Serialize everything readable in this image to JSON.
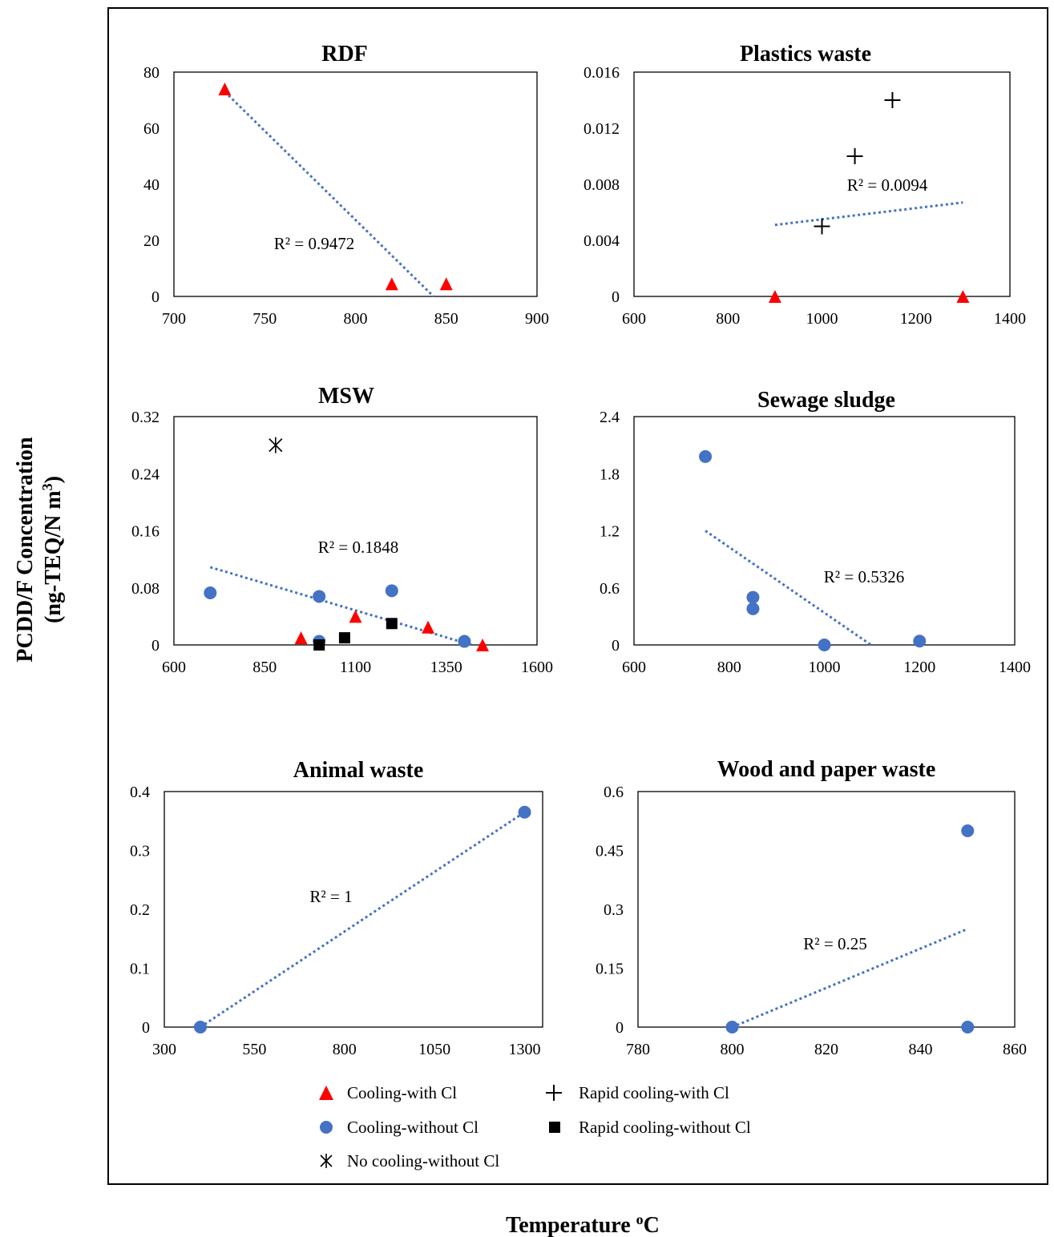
{
  "y_axis_title_line1": "PCDD/F Concentration",
  "y_axis_title_line2": "(ng-TEQ/N m3)",
  "x_axis_title": "Temperature oC",
  "colors": {
    "cooling_with_cl": "#ff0000",
    "cooling_without_cl": "#4472c4",
    "rapid": "#000000",
    "trendline": "#4472c4"
  },
  "legend": [
    {
      "label": "Cooling-with Cl",
      "marker": "triangle-red"
    },
    {
      "label": "Rapid cooling-with Cl",
      "marker": "plus-black"
    },
    {
      "label": "Cooling-without Cl",
      "marker": "circle-blue"
    },
    {
      "label": "Rapid cooling-without Cl",
      "marker": "square-black"
    },
    {
      "label": "No cooling-without Cl",
      "marker": "asterisk-black"
    }
  ],
  "chart_data": [
    {
      "type": "scatter",
      "title": "RDF",
      "xlim": [
        700,
        900
      ],
      "ylim": [
        0,
        80
      ],
      "xticks": [
        700,
        750,
        800,
        850,
        900
      ],
      "yticks": [
        0,
        20,
        40,
        60,
        80
      ],
      "series": [
        {
          "name": "Cooling-with Cl",
          "marker": "triangle",
          "points": [
            [
              728,
              74
            ],
            [
              820,
              4.5
            ],
            [
              850,
              4.5
            ]
          ]
        }
      ],
      "trendline": {
        "x": [
          728,
          843
        ],
        "y": [
          73,
          0
        ]
      },
      "r2_label": "R² = 0.9472"
    },
    {
      "type": "scatter",
      "title": "Plastics waste",
      "xlim": [
        600,
        1400
      ],
      "ylim": [
        0,
        0.016
      ],
      "xticks": [
        600,
        800,
        1000,
        1200,
        1400
      ],
      "yticks": [
        "0",
        "0.004",
        "0.008",
        "0.012",
        "0.016"
      ],
      "series": [
        {
          "name": "Cooling-with Cl",
          "marker": "triangle",
          "points": [
            [
              900,
              0
            ],
            [
              1300,
              0
            ]
          ]
        },
        {
          "name": "Rapid cooling-with Cl",
          "marker": "plus",
          "points": [
            [
              1000,
              0.005
            ],
            [
              1070,
              0.01
            ],
            [
              1150,
              0.014
            ]
          ]
        }
      ],
      "trendline": {
        "x": [
          900,
          1300
        ],
        "y": [
          0.0051,
          0.0067
        ]
      },
      "r2_label": "R² = 0.0094"
    },
    {
      "type": "scatter",
      "title": "MSW",
      "xlim": [
        600,
        1600
      ],
      "ylim": [
        0,
        0.32
      ],
      "xticks": [
        600,
        850,
        1100,
        1350,
        1600
      ],
      "yticks": [
        "0",
        "0.08",
        "0.16",
        "0.24",
        "0.32"
      ],
      "series": [
        {
          "name": "Cooling-with Cl",
          "marker": "triangle",
          "points": [
            [
              950,
              0.01
            ],
            [
              1100,
              0.04
            ],
            [
              1300,
              0.025
            ],
            [
              1450,
              0
            ]
          ]
        },
        {
          "name": "Cooling-without Cl",
          "marker": "circle",
          "points": [
            [
              700,
              0.073
            ],
            [
              1000,
              0.068
            ],
            [
              1200,
              0.076
            ],
            [
              1000,
              0.005
            ],
            [
              1400,
              0.005
            ]
          ]
        },
        {
          "name": "Rapid cooling-without Cl",
          "marker": "square",
          "points": [
            [
              1000,
              0
            ],
            [
              1070,
              0.01
            ],
            [
              1200,
              0.03
            ]
          ]
        },
        {
          "name": "No cooling-without Cl",
          "marker": "asterisk",
          "points": [
            [
              880,
              0.28
            ]
          ]
        }
      ],
      "trendline": {
        "x": [
          700,
          1420
        ],
        "y": [
          0.109,
          0
        ]
      },
      "r2_label": "R² = 0.1848"
    },
    {
      "type": "scatter",
      "title": "Sewage sludge",
      "xlim": [
        600,
        1400
      ],
      "ylim": [
        0,
        2.4
      ],
      "xticks": [
        600,
        800,
        1000,
        1200,
        1400
      ],
      "yticks": [
        "0",
        "0.6",
        "1.2",
        "1.8",
        "2.4"
      ],
      "series": [
        {
          "name": "Cooling-without Cl",
          "marker": "circle",
          "points": [
            [
              750,
              1.98
            ],
            [
              850,
              0.5
            ],
            [
              850,
              0.38
            ],
            [
              1000,
              0
            ],
            [
              1200,
              0.04
            ]
          ]
        }
      ],
      "trendline": {
        "x": [
          750,
          1098
        ],
        "y": [
          1.2,
          0
        ]
      },
      "r2_label": "R² = 0.5326"
    },
    {
      "type": "scatter",
      "title": "Animal waste",
      "xlim": [
        300,
        1350
      ],
      "ylim": [
        0,
        0.4
      ],
      "xticks": [
        300,
        550,
        800,
        1050,
        1300
      ],
      "yticks": [
        "0",
        "0.1",
        "0.2",
        "0.3",
        "0.4"
      ],
      "series": [
        {
          "name": "Cooling-without Cl",
          "marker": "circle",
          "points": [
            [
              400,
              0
            ],
            [
              1300,
              0.365
            ]
          ]
        }
      ],
      "trendline": {
        "x": [
          400,
          1300
        ],
        "y": [
          0,
          0.365
        ]
      },
      "r2_label": "R² = 1"
    },
    {
      "type": "scatter",
      "title": "Wood and paper waste",
      "xlim": [
        780,
        860
      ],
      "ylim": [
        0,
        0.6
      ],
      "xticks": [
        780,
        800,
        820,
        840,
        860
      ],
      "yticks": [
        "0",
        "0.15",
        "0.3",
        "0.45",
        "0.6"
      ],
      "series": [
        {
          "name": "Cooling-without Cl",
          "marker": "circle",
          "points": [
            [
              800,
              0
            ],
            [
              850,
              0.5
            ],
            [
              850,
              0
            ]
          ]
        }
      ],
      "trendline": {
        "x": [
          800,
          850
        ],
        "y": [
          0,
          0.25
        ]
      },
      "r2_label": "R² = 0.25"
    }
  ]
}
